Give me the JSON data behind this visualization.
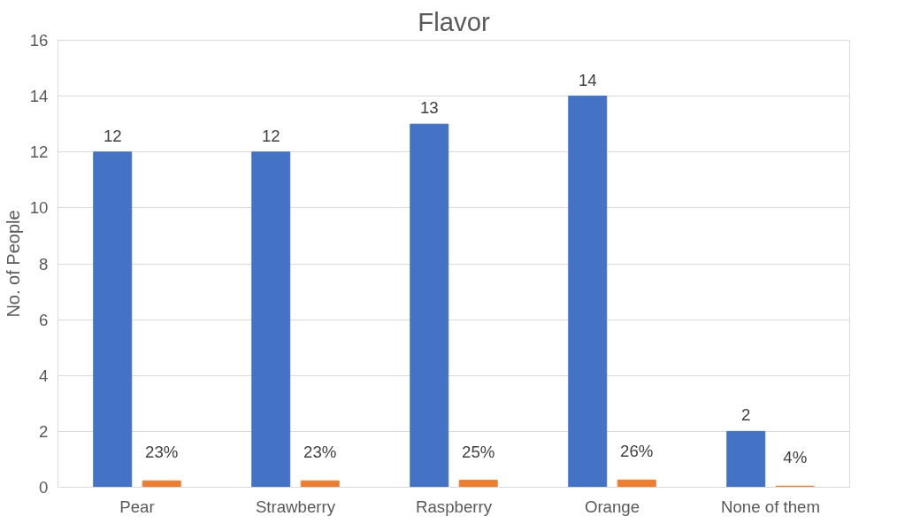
{
  "chart_data": {
    "type": "bar",
    "title": "Flavor",
    "ylabel": "No. of People",
    "categories": [
      "Pear",
      "Strawberry",
      "Raspberry",
      "Orange",
      "None of them"
    ],
    "series": [
      {
        "color": "#4472c4",
        "values": [
          12,
          12,
          13,
          14,
          2
        ],
        "value_labels": [
          "12",
          "12",
          "13",
          "14",
          "2"
        ]
      },
      {
        "color": "#ed7d31",
        "values": [
          0.23,
          0.23,
          0.25,
          0.26,
          0.04
        ],
        "value_labels": [
          "23%",
          "23%",
          "25%",
          "26%",
          "4%"
        ]
      }
    ],
    "ylim": [
      0,
      16
    ],
    "yticks": [
      0,
      2,
      4,
      6,
      8,
      10,
      12,
      14,
      16
    ],
    "grid": "y"
  }
}
